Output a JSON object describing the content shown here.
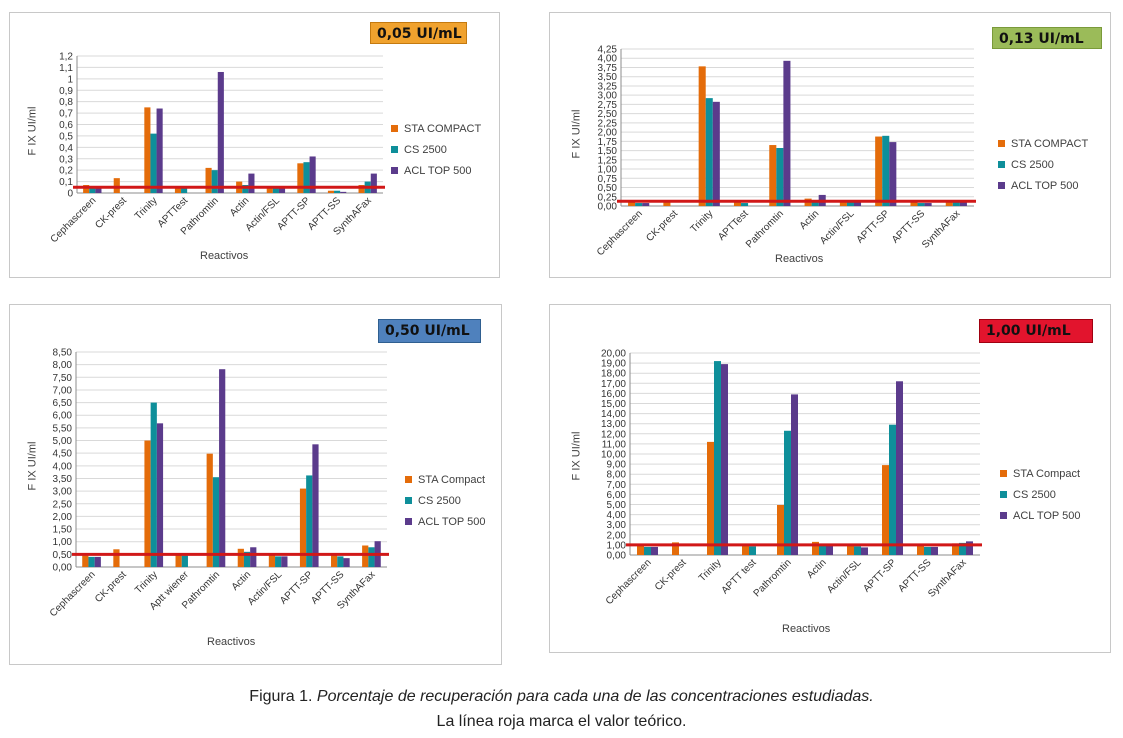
{
  "colors": {
    "series": [
      "#e46c0a",
      "#0e8f9a",
      "#5b3b8c"
    ],
    "reference": "#d11818",
    "grid": "#d9d9d9",
    "badges": [
      "#f0a22e",
      "#9bbb59",
      "#4f81bd",
      "#e2142d"
    ]
  },
  "caption": {
    "line1_prefix": "Figura 1. ",
    "line1_italic": "Porcentaje de recuperación para cada una de las concentraciones estudiadas.",
    "line2": "La línea roja marca el valor teórico."
  },
  "chart_data": [
    {
      "type": "bar",
      "title": "0,05 UI/mL",
      "xlabel": "Reactivos",
      "ylabel": "F IX UI/ml",
      "ylim": [
        0,
        1.2
      ],
      "ystep": 0.1,
      "ydecimals": 1,
      "yticks": [
        "0",
        "0,1",
        "0,2",
        "0,3",
        "0,4",
        "0,5",
        "0,6",
        "0,7",
        "0,8",
        "0,9",
        "1",
        "1,1",
        "1,2"
      ],
      "reference": 0.05,
      "categories": [
        "Cephascreen",
        "CK-prest",
        "Trinity",
        "APTTest",
        "Pathromtin",
        "Actin",
        "Actin/FSL",
        "APTT-SP",
        "APTT-SS",
        "SynthAFax"
      ],
      "series": [
        {
          "name": "STA COMPACT",
          "values": [
            0.07,
            0.13,
            0.75,
            0.06,
            0.22,
            0.1,
            0.06,
            0.26,
            0.02,
            0.07
          ]
        },
        {
          "name": "CS 2500",
          "values": [
            0.04,
            0,
            0.52,
            0.04,
            0.2,
            0.07,
            0.04,
            0.27,
            0.02,
            0.1
          ]
        },
        {
          "name": "ACL TOP 500",
          "values": [
            0.05,
            0,
            0.74,
            0,
            1.06,
            0.17,
            0.05,
            0.32,
            0.01,
            0.17
          ]
        }
      ]
    },
    {
      "type": "bar",
      "title": "0,13 UI/mL",
      "xlabel": "Reactivos",
      "ylabel": "F IX UI/ml",
      "ylim": [
        0,
        4.25
      ],
      "ystep": 0.25,
      "ydecimals": 2,
      "yticks": [
        "0,00",
        "0,25",
        "0,50",
        "0,75",
        "1,00",
        "1,25",
        "1,50",
        "1,75",
        "2,00",
        "2,25",
        "2,50",
        "2,75",
        "3,00",
        "3,25",
        "3,50",
        "3,75",
        "4,00",
        "4,25"
      ],
      "reference": 0.13,
      "categories": [
        "Cephascreen",
        "CK-prest",
        "Trinity",
        "APTTest",
        "Pathromtin",
        "Actin",
        "Actin/FSL",
        "APTT-SP",
        "APTT-SS",
        "SynthAFax"
      ],
      "series": [
        {
          "name": "STA COMPACT",
          "values": [
            0.1,
            0.12,
            3.78,
            0.1,
            1.65,
            0.2,
            0.12,
            1.88,
            0.1,
            0.12
          ]
        },
        {
          "name": "CS 2500",
          "values": [
            0.08,
            0,
            2.92,
            0.08,
            1.57,
            0.12,
            0.1,
            1.9,
            0.08,
            0.12
          ]
        },
        {
          "name": "ACL TOP 500",
          "values": [
            0.08,
            0,
            2.82,
            0,
            3.93,
            0.3,
            0.1,
            1.73,
            0.08,
            0.1
          ]
        }
      ]
    },
    {
      "type": "bar",
      "title": "0,50 UI/mL",
      "xlabel": "Reactivos",
      "ylabel": "F IX UI/ml",
      "ylim": [
        0,
        8.5
      ],
      "ystep": 0.5,
      "ydecimals": 2,
      "yticks": [
        "0,00",
        "0,50",
        "1,00",
        "1,50",
        "2,00",
        "2,50",
        "3,00",
        "3,50",
        "4,00",
        "4,50",
        "5,00",
        "5,50",
        "6,00",
        "6,50",
        "7,00",
        "7,50",
        "8,00",
        "8,50"
      ],
      "reference": 0.5,
      "categories": [
        "Cephascreen",
        "CK-prest",
        "Trinity",
        "Aptt wiener",
        "Pathromtin",
        "Actin",
        "Actin/FSL",
        "APTT-SP",
        "APTT-SS",
        "SynthAFax"
      ],
      "series": [
        {
          "name": "STA Compact",
          "values": [
            0.45,
            0.7,
            5.0,
            0.5,
            4.48,
            0.72,
            0.5,
            3.1,
            0.48,
            0.85
          ]
        },
        {
          "name": "CS 2500",
          "values": [
            0.4,
            0,
            6.5,
            0.45,
            3.55,
            0.6,
            0.42,
            3.62,
            0.42,
            0.78
          ]
        },
        {
          "name": "ACL TOP 500",
          "values": [
            0.4,
            0,
            5.68,
            0,
            7.82,
            0.78,
            0.42,
            4.85,
            0.35,
            1.02
          ]
        }
      ]
    },
    {
      "type": "bar",
      "title": "1,00 UI/mL",
      "xlabel": "Reactivos",
      "ylabel": "F IX UI/ml",
      "ylim": [
        0,
        20
      ],
      "ystep": 1,
      "ydecimals": 2,
      "yticks": [
        "0,00",
        "1,00",
        "2,00",
        "3,00",
        "4,00",
        "5,00",
        "6,00",
        "7,00",
        "8,00",
        "9,00",
        "10,00",
        "11,00",
        "12,00",
        "13,00",
        "14,00",
        "15,00",
        "16,00",
        "17,00",
        "18,00",
        "19,00",
        "20,00"
      ],
      "reference": 1.0,
      "categories": [
        "Cephascreen",
        "CK-prest",
        "Trinity",
        "APTT test",
        "Pathromtin",
        "Actin",
        "Actin/FSL",
        "APTT-SP",
        "APTT-SS",
        "SynthAFax"
      ],
      "series": [
        {
          "name": "STA Compact",
          "values": [
            0.9,
            1.25,
            11.2,
            0.9,
            4.95,
            1.3,
            0.95,
            8.9,
            0.9,
            1.15
          ]
        },
        {
          "name": "CS 2500",
          "values": [
            0.8,
            0,
            19.2,
            0.85,
            12.3,
            0.9,
            0.85,
            12.9,
            0.8,
            1.2
          ]
        },
        {
          "name": "ACL TOP 500",
          "values": [
            0.8,
            0,
            18.9,
            0,
            15.9,
            0.9,
            0.75,
            17.2,
            0.8,
            1.35
          ]
        }
      ]
    }
  ]
}
